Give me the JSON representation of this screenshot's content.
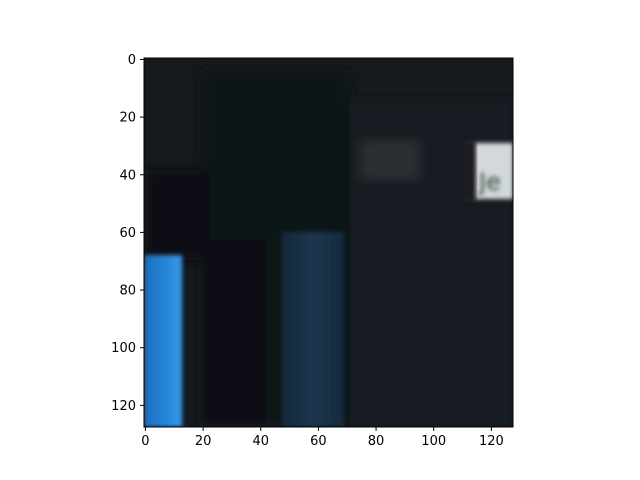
{
  "figure": {
    "type": "image-plot",
    "x_ticks": [
      "0",
      "20",
      "40",
      "60",
      "80",
      "100",
      "120"
    ],
    "y_ticks": [
      "0",
      "20",
      "40",
      "60",
      "80",
      "100",
      "120"
    ],
    "xlim": [
      -0.5,
      127.5
    ],
    "ylim": [
      127.5,
      -0.5
    ],
    "y_inverted": true,
    "image_content": {
      "description_icon": "dark-night-scene-image",
      "dominant_color": "#15181d",
      "accent_colors": [
        "#1f78c9",
        "#1c3a57",
        "#d8dde0"
      ],
      "sign_text": "Je"
    }
  }
}
